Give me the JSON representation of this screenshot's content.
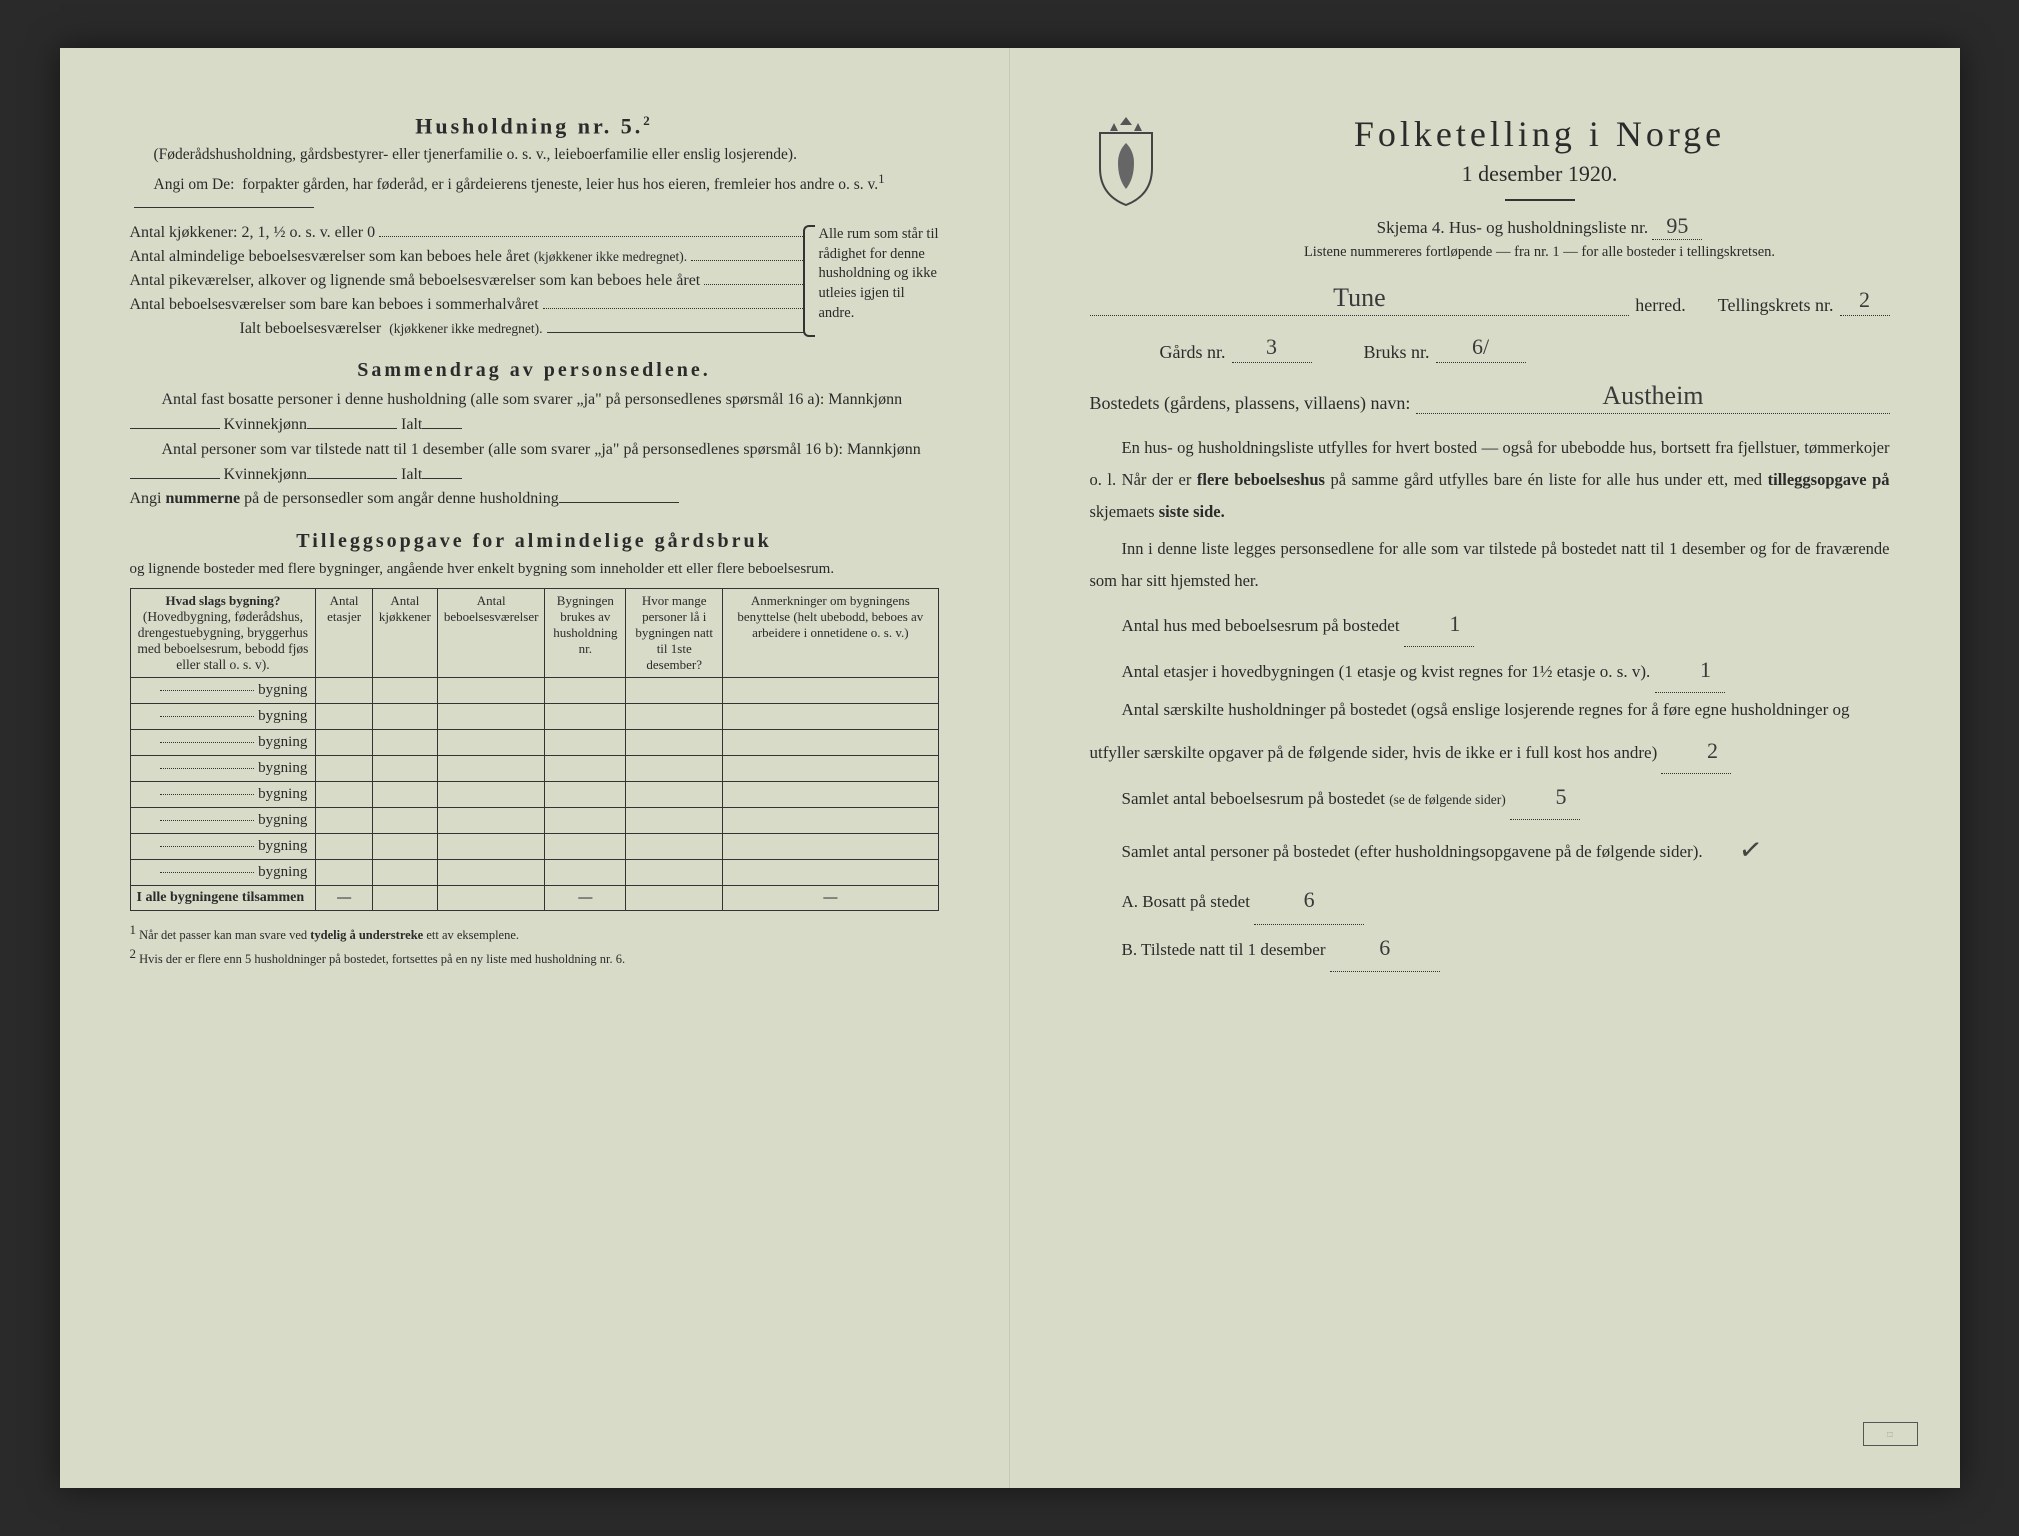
{
  "colors": {
    "paper": "#d8dbc8",
    "ink": "#2b2b2b",
    "handwriting": "#3a3a3a"
  },
  "left": {
    "heading": "Husholdning nr. 5.",
    "heading_sup": "2",
    "note1": "(Føderådshusholdning, gårdsbestyrer- eller tjenerfamilie o. s. v., leieboerfamilie eller enslig losjerende).",
    "note2_lead": "Angi om De:",
    "note2_rest": "forpakter gården, har føderåd, er i gårdeierens tjeneste, leier hus hos eieren, fremleier hos andre o. s. v.",
    "note2_sup": "1",
    "kitchens": "Antal kjøkkener: 2, 1, ½ o. s. v. eller 0",
    "rooms_a": "Antal almindelige beboelsesværelser som kan beboes hele året",
    "rooms_a_small": "(kjøkkener ikke medregnet).",
    "rooms_b": "Antal pikeværelser, alkover og lignende små beboelsesværelser som kan beboes hele året",
    "rooms_c": "Antal beboelsesværelser som bare kan beboes i sommerhalvåret",
    "total_rooms": "Ialt beboelsesværelser",
    "total_rooms_small": "(kjøkkener ikke medregnet).",
    "brace_text": "Alle rum som står til rådighet for denne husholdning og ikke utleies igjen til andre.",
    "summary_title": "Sammendrag av personsedlene.",
    "summary_p1a": "Antal fast bosatte personer i denne husholdning (alle som svarer „ja\" på personsedlenes spørsmål 16 a): Mannkjønn",
    "kvinne": "Kvinnekjønn",
    "ialt": "Ialt",
    "summary_p2a": "Antal personer som var tilstede natt til 1 desember (alle som svarer „ja\" på personsedlenes spørsmål 16 b): Mannkjønn",
    "angi_num": "Angi",
    "nummerne": "nummerne",
    "angi_rest": "på de personsedler som angår denne husholdning",
    "tillegg_title": "Tilleggsopgave for almindelige gårdsbruk",
    "tillegg_sub": "og lignende bosteder med flere bygninger, angående hver enkelt bygning som inneholder ett eller flere beboelsesrum.",
    "table": {
      "col1": "Hvad slags bygning?",
      "col1_sub": "(Hovedbygning, føderådshus, drengestuebygning, bryggerhus med beboelsesrum, bebodd fjøs eller stall o. s. v).",
      "col2": "Antal etasjer",
      "col3": "Antal kjøkkener",
      "col4": "Antal beboelsesværelser",
      "col5": "Bygningen brukes av husholdning nr.",
      "col6": "Hvor mange personer lå i bygningen natt til 1ste desember?",
      "col7": "Anmerkninger om bygningens benyttelse (helt ubebodd, beboes av arbeidere i onnetidene o. s. v.)",
      "row_label": "bygning",
      "footer": "I alle bygningene tilsammen",
      "dash": "—",
      "row_count": 8
    },
    "fn1": "Når det passer kan man svare ved",
    "fn1_b": "tydelig å understreke",
    "fn1_c": "ett av eksemplene.",
    "fn2": "Hvis der er flere enn 5 husholdninger på bostedet, fortsettes på en ny liste med husholdning nr. 6.",
    "fn_sup1": "1",
    "fn_sup2": "2"
  },
  "right": {
    "main_title": "Folketelling i Norge",
    "date": "1 desember 1920.",
    "skjema": "Skjema 4.  Hus- og husholdningsliste nr.",
    "liste_nr_hand": "95",
    "liste_note": "Listene nummereres fortløpende — fra nr. 1 — for alle bosteder i tellingskretsen.",
    "herred_hand": "Tune",
    "herred_label": "herred.",
    "krets_label": "Tellingskrets nr.",
    "krets_hand": "2",
    "gards_label": "Gårds nr.",
    "gards_hand": "3",
    "bruks_label": "Bruks nr.",
    "bruks_hand": "6/",
    "bosted_label": "Bostedets (gårdens, plassens, villaens) navn:",
    "bosted_hand": "Austheim",
    "para1": "En hus- og husholdningsliste utfylles for hvert bosted — også for ubebodde hus, bortsett fra fjellstuer, tømmerkojer o. l.",
    "para1b_lead": "Når der er",
    "para1b_bold": "flere beboelseshus",
    "para1b_rest": "på samme gård utfylles bare én liste for alle hus under ett, med",
    "para1b_bold2": "tilleggsopgave på",
    "para1b_rest2": "skjemaets",
    "para1b_bold3": "siste side.",
    "para2": "Inn i denne liste legges personsedlene for alle som var tilstede på bostedet natt til 1 desember og for de fraværende som har sitt hjemsted her.",
    "s1": "Antal hus med beboelsesrum på bostedet",
    "s1_hand": "1",
    "s2a": "Antal etasjer i hovedbygningen (1 etasje og kvist regnes for 1½ etasje o. s. v).",
    "s2_hand": "1",
    "s3": "Antal særskilte husholdninger på bostedet (også enslige losjerende regnes for å føre egne husholdninger og utfyller særskilte opgaver på de følgende sider, hvis de ikke er i full kost hos andre)",
    "s3_hand": "2",
    "s4": "Samlet antal beboelsesrum på bostedet",
    "s4_small": "(se de følgende sider)",
    "s4_hand": "5",
    "s5": "Samlet antal personer på bostedet (efter husholdningsopgavene på de følgende sider).",
    "sA_label": "A.  Bosatt på stedet",
    "sA_hand": "6",
    "sB_label": "B.  Tilstede natt til 1 desember",
    "sB_hand": "6",
    "check": "✓"
  }
}
